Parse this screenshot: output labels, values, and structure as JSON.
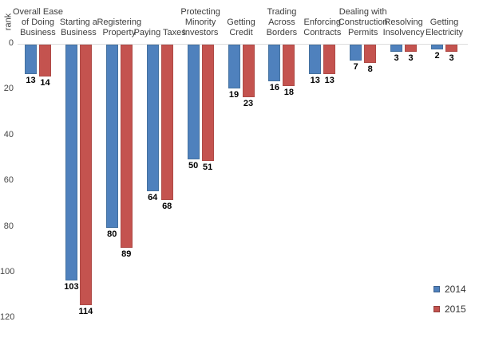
{
  "chart_data": {
    "type": "bar",
    "title": "",
    "ylabel": "rank",
    "yticks": [
      0,
      20,
      40,
      60,
      80,
      100,
      120
    ],
    "ylim": [
      0,
      120
    ],
    "axis_inverted": true,
    "bars_direction": "down-from-zero",
    "grid": false,
    "legend_position": "bottom-right",
    "categories": [
      "Overall Ease of Doing Business",
      "Starting a Business",
      "Registering Property",
      "Paying Taxes",
      "Protecting Minority Investors",
      "Getting Credit",
      "Trading Across Borders",
      "Enforcing Contracts",
      "Dealing with Construction Permits",
      "Resolving Insolvency",
      "Getting Electricity"
    ],
    "category_label_lines": [
      [
        "Overall Ease",
        "of Doing",
        "Business"
      ],
      [
        "Starting a",
        "Business"
      ],
      [
        "Registering",
        "Property"
      ],
      [
        "Paying Taxes"
      ],
      [
        "Protecting",
        "Minority",
        "Investors"
      ],
      [
        "Getting",
        "Credit"
      ],
      [
        "Trading",
        "Across",
        "Borders"
      ],
      [
        "Enforcing",
        "Contracts"
      ],
      [
        "Dealing with",
        "Construction",
        "Permits"
      ],
      [
        "Resolving",
        "Insolvency"
      ],
      [
        "Getting",
        "Electricity"
      ]
    ],
    "series": [
      {
        "name": "2014",
        "color": "#4f81bd",
        "values": [
          13,
          103,
          80,
          64,
          50,
          19,
          16,
          13,
          7,
          3,
          2
        ]
      },
      {
        "name": "2015",
        "color": "#c4534f",
        "values": [
          14,
          114,
          89,
          68,
          51,
          23,
          18,
          13,
          8,
          3,
          3
        ]
      }
    ]
  }
}
